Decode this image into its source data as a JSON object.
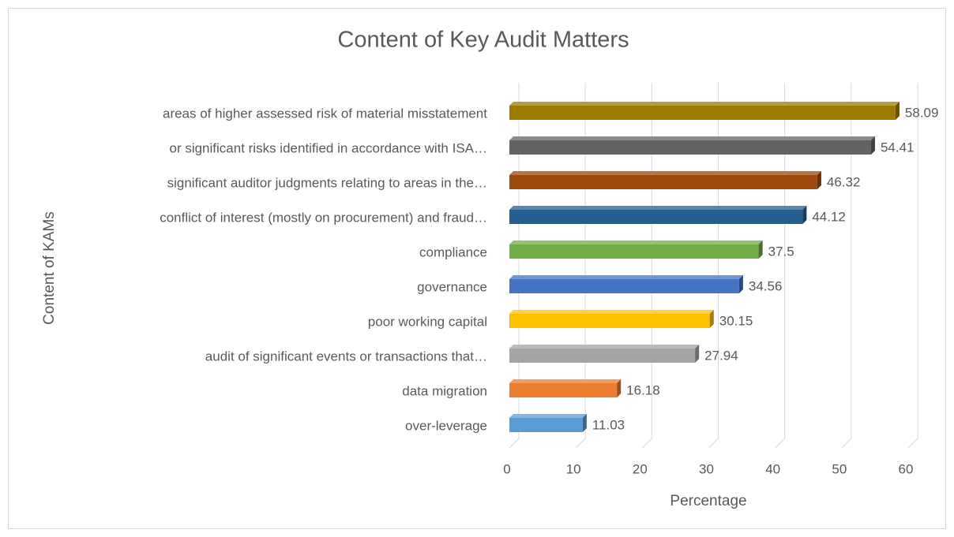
{
  "chart_data": {
    "type": "bar3d_horizontal",
    "title": "Content of Key Audit Matters",
    "x_label": "Percentage",
    "y_label": "Content of KAMs",
    "categories": [
      "areas of higher assessed risk of material misstatement",
      "or significant risks identified in accordance with ISA…",
      "significant auditor judgments relating to areas in the…",
      "conflict of interest (mostly on procurement) and fraud…",
      "compliance",
      "governance",
      "poor working capital",
      "audit of significant events or transactions that…",
      "data migration",
      "over-leverage"
    ],
    "values": [
      58.09,
      54.41,
      46.32,
      44.12,
      37.5,
      34.56,
      30.15,
      27.94,
      16.18,
      11.03
    ],
    "colors": [
      "#9e7b00",
      "#636363",
      "#9e480e",
      "#255e91",
      "#70ad47",
      "#4472c4",
      "#ffc000",
      "#a5a5a5",
      "#ed7d31",
      "#5b9bd5"
    ],
    "xlim": [
      0,
      60
    ],
    "xticks": [
      0,
      10,
      20,
      30,
      40,
      50,
      60
    ],
    "grid": true
  }
}
